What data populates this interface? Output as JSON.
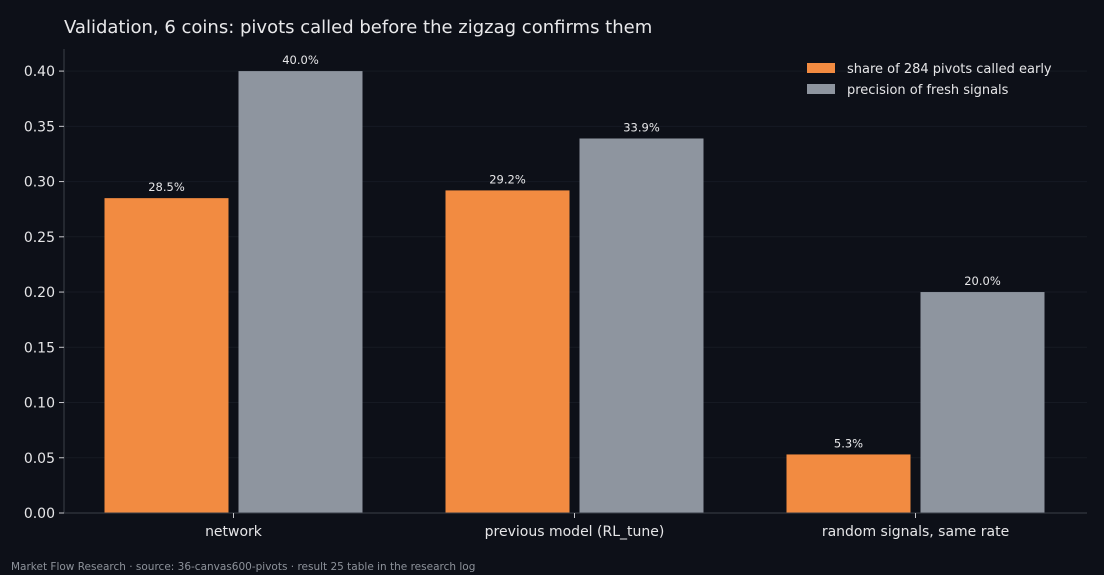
{
  "title": "Validation, 6 coins: pivots called before the zigzag confirms them",
  "footer": "Market Flow Research · source: 36-canvas600-pivots · result 25 table in the research log",
  "colors": {
    "background": "#0d1018",
    "series_early": "#f28b41",
    "series_precision": "#8e959f",
    "axis": "#3a3f48",
    "grid": "#161a23"
  },
  "chart_data": {
    "type": "bar",
    "title": "Validation, 6 coins: pivots called before the zigzag confirms them",
    "xlabel": "",
    "ylabel": "",
    "categories": [
      "network",
      "previous model (RL_tune)",
      "random signals, same rate"
    ],
    "series": [
      {
        "name": "share of 284 pivots called early",
        "values": [
          0.285,
          0.292,
          0.053
        ],
        "labels": [
          "28.5%",
          "29.2%",
          "5.3%"
        ]
      },
      {
        "name": "precision of fresh signals",
        "values": [
          0.4,
          0.339,
          0.2
        ],
        "labels": [
          "40.0%",
          "33.9%",
          "20.0%"
        ]
      }
    ],
    "ylim": [
      0,
      0.42
    ],
    "yticks": [
      "0.00",
      "0.05",
      "0.10",
      "0.15",
      "0.20",
      "0.25",
      "0.30",
      "0.35",
      "0.40"
    ],
    "grid": true,
    "legend_position": "top-right"
  }
}
